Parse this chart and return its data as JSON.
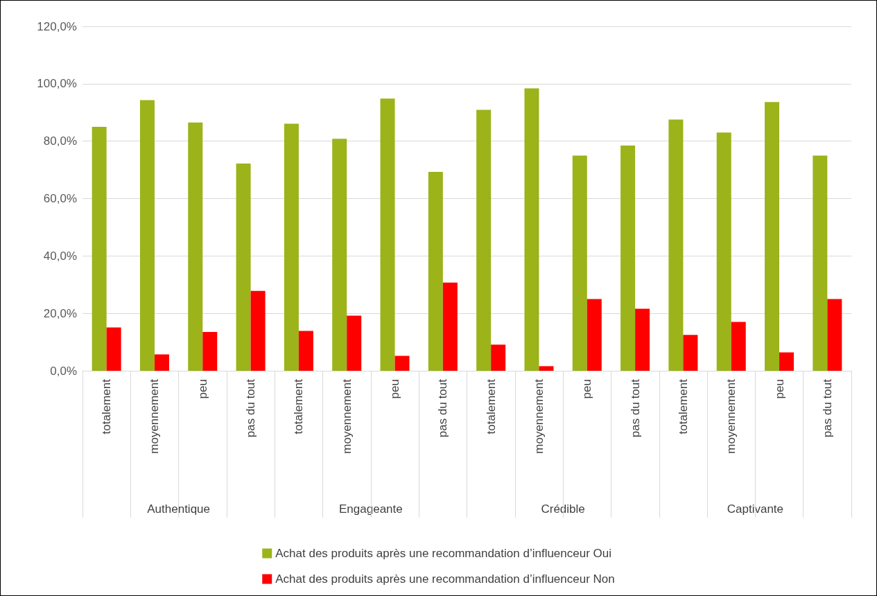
{
  "chart_data": {
    "type": "bar",
    "categories": [
      "totalement",
      "moyennement",
      "peu",
      "pas du tout",
      "totalement",
      "moyennement",
      "peu",
      "pas du tout",
      "totalement",
      "moyennement",
      "peu",
      "pas du tout",
      "totalement",
      "moyennement",
      "peu",
      "pas du tout"
    ],
    "annotations": [
      "Authentique",
      "Engageante",
      "Crédible",
      "Captivante"
    ],
    "series": [
      {
        "name": "Achat des produits après une recommandation d’influenceur Oui",
        "color": "#9cb31a",
        "values": [
          85.0,
          94.3,
          86.5,
          72.2,
          86.1,
          80.8,
          94.8,
          69.3,
          90.9,
          98.4,
          75.0,
          78.5,
          87.5,
          83.0,
          93.6,
          75.0
        ]
      },
      {
        "name": "Achat des produits après une recommandation d’influenceur Non",
        "color": "#ff0000",
        "values": [
          15.1,
          5.7,
          13.5,
          27.8,
          13.9,
          19.2,
          5.2,
          30.7,
          9.1,
          1.6,
          25.0,
          21.6,
          12.5,
          17.0,
          6.4,
          25.0
        ]
      }
    ],
    "ylim": [
      0,
      120
    ],
    "yticks": [
      {
        "value": 0,
        "label": "0,0%"
      },
      {
        "value": 20,
        "label": "20,0%"
      },
      {
        "value": 40,
        "label": "40,0%"
      },
      {
        "value": 60,
        "label": "60,0%"
      },
      {
        "value": 80,
        "label": "80,0%"
      },
      {
        "value": 100,
        "label": "100,0%"
      },
      {
        "value": 120,
        "label": "120,0%"
      }
    ],
    "grid": "y",
    "legend": "bottom"
  }
}
